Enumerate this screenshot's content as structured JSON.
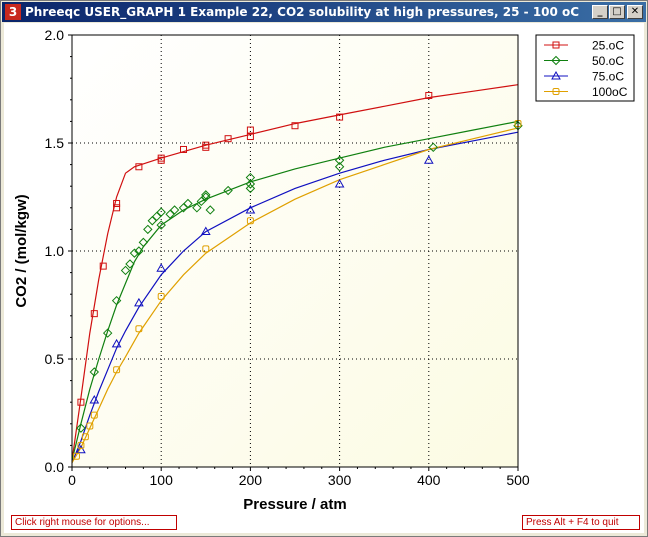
{
  "window": {
    "title": "Phreeqc USER_GRAPH 1 Example 22, CO2 solubility at high pressures, 25 - 100 oC",
    "icon_label": "3",
    "controls": [
      "minimize-icon",
      "maximize-icon",
      "close-icon"
    ]
  },
  "status": {
    "left": "Click right mouse for options...",
    "right": "Press Alt + F4 to quit"
  },
  "colors": {
    "s25": "#d01010",
    "s50": "#108010",
    "s75": "#1010c0",
    "s100": "#e0a000",
    "plot_bg": "#fdfde8"
  },
  "chart_data": {
    "type": "scatter",
    "title": "",
    "xlabel": "Pressure / atm",
    "ylabel": "CO2 / (mol/kgw)",
    "xlim": [
      0,
      500
    ],
    "ylim": [
      0,
      2.0
    ],
    "xticks": [
      "0",
      "100",
      "200",
      "300",
      "400",
      "500"
    ],
    "yticks": [
      "0.0",
      "0.5",
      "1.0",
      "1.5",
      "2.0"
    ],
    "grid": true,
    "legend_position": "top-right",
    "series": [
      {
        "name": "25.oC",
        "color": "#d01010",
        "marker": "square",
        "points": [
          [
            10,
            0.3
          ],
          [
            25,
            0.71
          ],
          [
            35,
            0.93
          ],
          [
            50,
            1.2
          ],
          [
            50,
            1.22
          ],
          [
            75,
            1.39
          ],
          [
            100,
            1.42
          ],
          [
            100,
            1.43
          ],
          [
            125,
            1.47
          ],
          [
            150,
            1.48
          ],
          [
            150,
            1.49
          ],
          [
            175,
            1.52
          ],
          [
            200,
            1.53
          ],
          [
            200,
            1.56
          ],
          [
            250,
            1.58
          ],
          [
            300,
            1.62
          ],
          [
            400,
            1.72
          ]
        ],
        "curve": [
          [
            0,
            0.03
          ],
          [
            10,
            0.32
          ],
          [
            20,
            0.62
          ],
          [
            30,
            0.87
          ],
          [
            40,
            1.08
          ],
          [
            50,
            1.25
          ],
          [
            60,
            1.36
          ],
          [
            70,
            1.39
          ],
          [
            100,
            1.43
          ],
          [
            150,
            1.49
          ],
          [
            200,
            1.54
          ],
          [
            250,
            1.59
          ],
          [
            300,
            1.63
          ],
          [
            350,
            1.67
          ],
          [
            400,
            1.71
          ],
          [
            450,
            1.74
          ],
          [
            500,
            1.77
          ]
        ]
      },
      {
        "name": "50.oC",
        "color": "#108010",
        "marker": "diamond",
        "points": [
          [
            10,
            0.18
          ],
          [
            25,
            0.44
          ],
          [
            40,
            0.62
          ],
          [
            50,
            0.77
          ],
          [
            60,
            0.91
          ],
          [
            65,
            0.94
          ],
          [
            70,
            0.99
          ],
          [
            75,
            1.0
          ],
          [
            80,
            1.04
          ],
          [
            85,
            1.1
          ],
          [
            90,
            1.14
          ],
          [
            95,
            1.16
          ],
          [
            100,
            1.18
          ],
          [
            100,
            1.12
          ],
          [
            110,
            1.17
          ],
          [
            115,
            1.19
          ],
          [
            125,
            1.2
          ],
          [
            130,
            1.22
          ],
          [
            140,
            1.2
          ],
          [
            145,
            1.23
          ],
          [
            150,
            1.25
          ],
          [
            150,
            1.26
          ],
          [
            155,
            1.19
          ],
          [
            175,
            1.28
          ],
          [
            200,
            1.31
          ],
          [
            200,
            1.34
          ],
          [
            200,
            1.29
          ],
          [
            300,
            1.42
          ],
          [
            300,
            1.39
          ],
          [
            405,
            1.48
          ],
          [
            500,
            1.58
          ]
        ],
        "curve": [
          [
            0,
            0.03
          ],
          [
            10,
            0.2
          ],
          [
            20,
            0.36
          ],
          [
            30,
            0.5
          ],
          [
            40,
            0.63
          ],
          [
            50,
            0.75
          ],
          [
            60,
            0.85
          ],
          [
            70,
            0.95
          ],
          [
            80,
            1.02
          ],
          [
            100,
            1.12
          ],
          [
            125,
            1.19
          ],
          [
            150,
            1.24
          ],
          [
            200,
            1.32
          ],
          [
            250,
            1.38
          ],
          [
            300,
            1.43
          ],
          [
            350,
            1.48
          ],
          [
            400,
            1.52
          ],
          [
            450,
            1.56
          ],
          [
            500,
            1.6
          ]
        ]
      },
      {
        "name": "75.oC",
        "color": "#1010c0",
        "marker": "triangle",
        "points": [
          [
            10,
            0.08
          ],
          [
            25,
            0.31
          ],
          [
            50,
            0.57
          ],
          [
            75,
            0.76
          ],
          [
            100,
            0.92
          ],
          [
            150,
            1.09
          ],
          [
            200,
            1.19
          ],
          [
            300,
            1.31
          ],
          [
            400,
            1.42
          ]
        ],
        "curve": [
          [
            0,
            0.02
          ],
          [
            10,
            0.12
          ],
          [
            20,
            0.24
          ],
          [
            30,
            0.35
          ],
          [
            40,
            0.45
          ],
          [
            50,
            0.55
          ],
          [
            60,
            0.63
          ],
          [
            75,
            0.74
          ],
          [
            100,
            0.89
          ],
          [
            125,
            1.0
          ],
          [
            150,
            1.09
          ],
          [
            200,
            1.2
          ],
          [
            250,
            1.29
          ],
          [
            300,
            1.36
          ],
          [
            350,
            1.42
          ],
          [
            400,
            1.47
          ],
          [
            450,
            1.51
          ],
          [
            500,
            1.55
          ]
        ]
      },
      {
        "name": "100oC",
        "color": "#e0a000",
        "marker": "circle",
        "points": [
          [
            5,
            0.05
          ],
          [
            10,
            0.1
          ],
          [
            15,
            0.14
          ],
          [
            20,
            0.19
          ],
          [
            25,
            0.24
          ],
          [
            50,
            0.45
          ],
          [
            75,
            0.64
          ],
          [
            100,
            0.79
          ],
          [
            150,
            1.01
          ],
          [
            200,
            1.14
          ],
          [
            500,
            1.59
          ]
        ],
        "curve": [
          [
            0,
            0.02
          ],
          [
            10,
            0.09
          ],
          [
            20,
            0.18
          ],
          [
            30,
            0.27
          ],
          [
            40,
            0.36
          ],
          [
            50,
            0.44
          ],
          [
            60,
            0.51
          ],
          [
            75,
            0.62
          ],
          [
            100,
            0.77
          ],
          [
            125,
            0.89
          ],
          [
            150,
            0.99
          ],
          [
            200,
            1.13
          ],
          [
            250,
            1.24
          ],
          [
            300,
            1.33
          ],
          [
            350,
            1.4
          ],
          [
            400,
            1.47
          ],
          [
            450,
            1.52
          ],
          [
            500,
            1.57
          ]
        ]
      }
    ]
  }
}
